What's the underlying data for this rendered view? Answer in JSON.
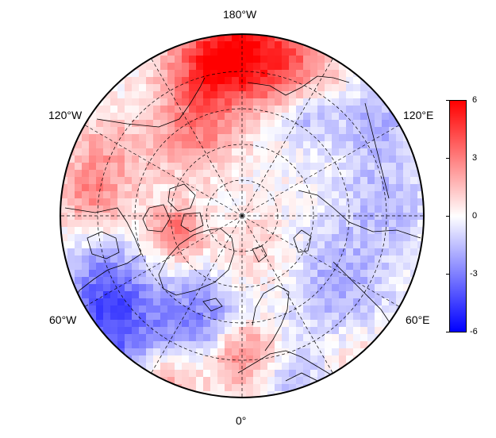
{
  "map": {
    "projection": "north-polar-stereographic",
    "lon_labels": {
      "top": "180°W",
      "upper_left": "120°W",
      "upper_right": "120°E",
      "lower_left": "60°W",
      "lower_right": "60°E",
      "bottom": "0°"
    },
    "graticule": "dashed",
    "colors": {
      "pos": "#ff0000",
      "mid": "#ffffff",
      "neg": "#0000ff",
      "line": "#000000"
    }
  },
  "colorbar": {
    "max_label": "6",
    "t3_label": "3",
    "zero_label": "0",
    "tm3_label": "-3",
    "min_label": "-6",
    "range": [
      -6,
      6
    ]
  }
}
